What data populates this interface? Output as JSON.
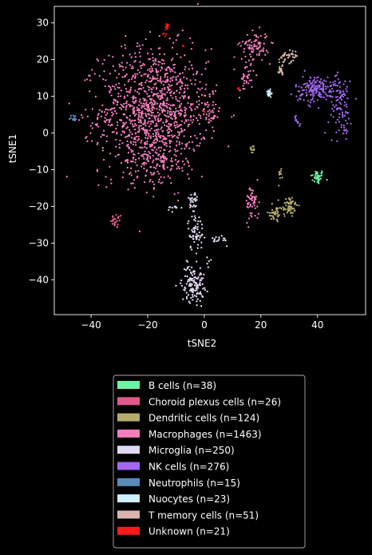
{
  "chart_data": {
    "type": "scatter",
    "title": "",
    "xlabel": "tSNE2",
    "ylabel": "tSNE1",
    "xlim": [
      -53,
      57
    ],
    "ylim": [
      -49.5,
      34.5
    ],
    "xticks": [
      -40,
      -20,
      0,
      20,
      40
    ],
    "yticks": [
      -40,
      -30,
      -20,
      -10,
      0,
      10,
      20,
      30
    ],
    "grid": false,
    "background": "#000000",
    "legend_placement": "below",
    "series": [
      {
        "name": "B cells (n=38)",
        "color": "#6ef2a6",
        "n": 38,
        "clusters": [
          {
            "cx": 40,
            "cy": -12,
            "sx": 1.2,
            "sy": 1.0,
            "n": 38
          }
        ]
      },
      {
        "name": "Choroid plexus cells (n=26)",
        "color": "#de5a8a",
        "n": 26,
        "clusters": [
          {
            "cx": -31,
            "cy": -24,
            "sx": 1.0,
            "sy": 1.0,
            "n": 26
          }
        ]
      },
      {
        "name": "Dendritic cells (n=124)",
        "color": "#b5ad6a",
        "n": 124,
        "clusters": [
          {
            "cx": 30,
            "cy": -20,
            "sx": 1.5,
            "sy": 1.5,
            "n": 60
          },
          {
            "cx": 25,
            "cy": -22,
            "sx": 1.2,
            "sy": 1.2,
            "n": 35
          },
          {
            "cx": 17,
            "cy": -4.5,
            "sx": 0.4,
            "sy": 0.6,
            "n": 12
          },
          {
            "cx": 27,
            "cy": -11,
            "sx": 0.4,
            "sy": 0.8,
            "n": 10
          },
          {
            "cx": 27,
            "cy": 18,
            "sx": 0.6,
            "sy": 1.0,
            "n": 7
          }
        ]
      },
      {
        "name": "Macrophages (n=1463)",
        "color": "#f27dbd",
        "n": 1463,
        "clusters": [
          {
            "cx": -18,
            "cy": 6,
            "sx": 9.5,
            "sy": 8.5,
            "n": 1150
          },
          {
            "cx": -18,
            "cy": -8,
            "sx": 5.5,
            "sy": 3.5,
            "n": 100
          },
          {
            "cx": 18,
            "cy": 24,
            "sx": 2.5,
            "sy": 1.8,
            "n": 80
          },
          {
            "cx": 15,
            "cy": 16,
            "sx": 1.2,
            "sy": 3.0,
            "n": 40
          },
          {
            "cx": 17,
            "cy": -19,
            "sx": 1.2,
            "sy": 2.5,
            "n": 55
          },
          {
            "cx": 2,
            "cy": 6,
            "sx": 1.2,
            "sy": 3.0,
            "n": 38
          }
        ]
      },
      {
        "name": "Microglia (n=250)",
        "color": "#e2d8f2",
        "n": 250,
        "clusters": [
          {
            "cx": -4,
            "cy": -41,
            "sx": 2.0,
            "sy": 2.5,
            "n": 130
          },
          {
            "cx": -3,
            "cy": -27,
            "sx": 1.4,
            "sy": 2.5,
            "n": 60
          },
          {
            "cx": -4,
            "cy": -19,
            "sx": 0.8,
            "sy": 2.0,
            "n": 28
          },
          {
            "cx": 6,
            "cy": -29,
            "sx": 1.5,
            "sy": 0.7,
            "n": 17
          },
          {
            "cx": -11,
            "cy": -20.5,
            "sx": 1.2,
            "sy": 0.5,
            "n": 10
          },
          {
            "cx": 2,
            "cy": -35,
            "sx": 0.5,
            "sy": 0.6,
            "n": 5
          }
        ]
      },
      {
        "name": "NK cells (n=276)",
        "color": "#a266f0",
        "n": 276,
        "clusters": [
          {
            "cx": 40,
            "cy": 12,
            "sx": 4.0,
            "sy": 1.8,
            "n": 180
          },
          {
            "cx": 48,
            "cy": 7,
            "sx": 2.0,
            "sy": 4.0,
            "n": 80
          },
          {
            "cx": 33,
            "cy": 4,
            "sx": 0.6,
            "sy": 0.8,
            "n": 10
          },
          {
            "cx": 50,
            "cy": 0.5,
            "sx": 0.5,
            "sy": 0.5,
            "n": 6
          }
        ]
      },
      {
        "name": "Neutrophils (n=15)",
        "color": "#5a8ab8",
        "n": 15,
        "clusters": [
          {
            "cx": -46,
            "cy": 4,
            "sx": 0.7,
            "sy": 0.5,
            "n": 15
          }
        ]
      },
      {
        "name": "Nuocytes (n=23)",
        "color": "#cdeefa",
        "n": 23,
        "clusters": [
          {
            "cx": 23,
            "cy": 11,
            "sx": 0.5,
            "sy": 0.6,
            "n": 23
          }
        ]
      },
      {
        "name": "T memory cells (n=51)",
        "color": "#d9b5ad",
        "n": 51,
        "clusters": [
          {
            "cx": 31,
            "cy": 21,
            "sx": 0.8,
            "sy": 1.0,
            "n": 20
          },
          {
            "cx": 28,
            "cy": 20,
            "sx": 1.0,
            "sy": 1.0,
            "n": 18
          },
          {
            "cx": 27,
            "cy": 17,
            "sx": 0.6,
            "sy": 0.6,
            "n": 13
          }
        ]
      },
      {
        "name": "Unknown (n=21)",
        "color": "#ff1a1a",
        "n": 21,
        "clusters": [
          {
            "cx": -13,
            "cy": 29,
            "sx": 0.4,
            "sy": 0.5,
            "n": 10
          },
          {
            "cx": -14,
            "cy": 27,
            "sx": 0.4,
            "sy": 0.4,
            "n": 4
          },
          {
            "cx": 12,
            "cy": 12,
            "sx": 0.2,
            "sy": 0.3,
            "n": 3
          },
          {
            "cx": -7,
            "cy": 24,
            "sx": 0.3,
            "sy": 0.3,
            "n": 2
          },
          {
            "cx": 0,
            "cy": 6,
            "sx": 0.3,
            "sy": 0.3,
            "n": 2
          }
        ]
      }
    ]
  }
}
